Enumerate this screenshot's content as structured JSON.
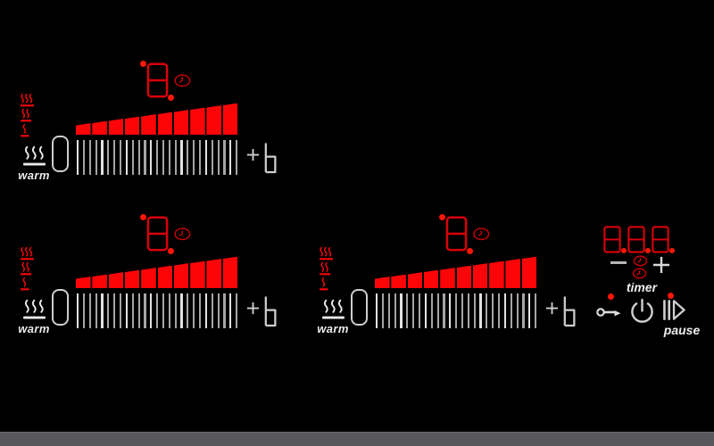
{
  "colors": {
    "background": "#000000",
    "red": "#fb0508",
    "display_red": "#d9000a",
    "clock_red": "#c30008",
    "led_red": "#ff1606",
    "white": "#e9e9e9",
    "icon_gray": "#cdcdcd",
    "tick_gray": "#a5a5a5",
    "tick_bright": "#e2e2e2",
    "bottom_bar": "#58585a"
  },
  "slider": {
    "ramp_segment_count": 10,
    "tick_count": 27
  },
  "zones": [
    {
      "power_display": "8",
      "warm_label": "warm",
      "off_label": "0",
      "boost_label": "+b",
      "heat_level_steps": 3
    },
    {
      "power_display": "8",
      "warm_label": "warm",
      "off_label": "0",
      "boost_label": "+b",
      "heat_level_steps": 3
    },
    {
      "power_display": "8",
      "warm_label": "warm",
      "off_label": "0",
      "boost_label": "+b",
      "heat_level_steps": 3
    }
  ],
  "timer": {
    "digits": [
      "8",
      "8",
      "8"
    ],
    "label": "timer",
    "minus_label": "−",
    "plus_label": "+"
  },
  "controls": {
    "pause_label": "pause"
  },
  "icons": {
    "zone": [
      "heat-level-3-icon",
      "heat-level-2-icon",
      "heat-level-1-icon",
      "keep-warm-icon",
      "clock-icon",
      "seven-segment-display",
      "plus-icon",
      "boost-b-icon"
    ],
    "master": [
      "clock-icon",
      "clock-icon",
      "key-lock-icon",
      "power-standby-icon",
      "pause-play-icon"
    ]
  }
}
